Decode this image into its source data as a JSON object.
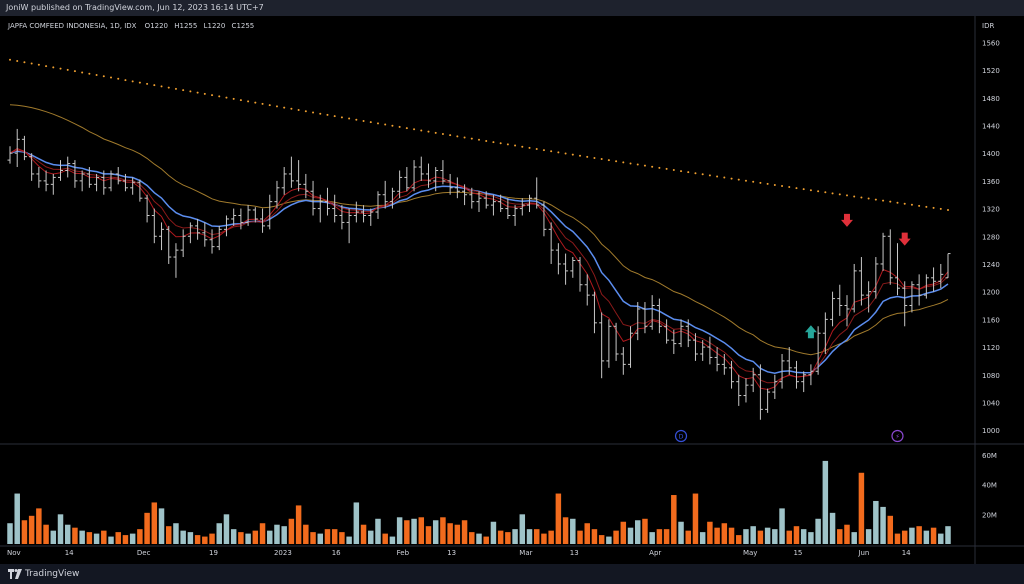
{
  "header": {
    "published": "JoniW published on TradingView.com, Jun 12, 2023 16:14 UTC+7"
  },
  "footer": {
    "brand": "TradingView"
  },
  "symbol": {
    "name": "JAPFA COMFEED INDONESIA",
    "interval": "1D",
    "exchange": "IDX",
    "o_label": "O",
    "o": "1220",
    "h_label": "H",
    "h": "1255",
    "l_label": "L",
    "l": "1220",
    "c_label": "C",
    "c": "1255"
  },
  "colors": {
    "bar": "#c8c8c8",
    "ema_blue": "#5b8def",
    "ema_red": "#b0191e",
    "ema_darkred": "#8b1a1a",
    "ma_tan": "#a07a2c",
    "ma_dots": "#f0a030",
    "vol_up": "#9fc3c8",
    "vol_down": "#f26b1d",
    "arrow_down": "#e0303a",
    "arrow_up": "#26a69a",
    "event_icon": "#3550d8",
    "event_icon_purple": "#8a48d0"
  },
  "chart_data": {
    "type": "ohlc",
    "currency_label": "IDR",
    "price_ticks": [
      1000,
      1040,
      1080,
      1120,
      1160,
      1200,
      1240,
      1280,
      1320,
      1360,
      1400,
      1440,
      1480,
      1520,
      1560
    ],
    "ylim": [
      980,
      1575
    ],
    "volume_ticks": [
      {
        "v": 20,
        "label": "20M"
      },
      {
        "v": 40,
        "label": "40M"
      },
      {
        "v": 60,
        "label": "60M"
      }
    ],
    "volume_ylim": [
      0,
      62
    ],
    "x_labels": [
      {
        "i": 0,
        "label": "Nov"
      },
      {
        "i": 8,
        "label": "14"
      },
      {
        "i": 18,
        "label": "Dec"
      },
      {
        "i": 28,
        "label": "19"
      },
      {
        "i": 37,
        "label": "2023"
      },
      {
        "i": 45,
        "label": "16"
      },
      {
        "i": 54,
        "label": "Feb"
      },
      {
        "i": 61,
        "label": "13"
      },
      {
        "i": 71,
        "label": "Mar"
      },
      {
        "i": 78,
        "label": "13"
      },
      {
        "i": 89,
        "label": "Apr"
      },
      {
        "i": 102,
        "label": "May"
      },
      {
        "i": 109,
        "label": "15"
      },
      {
        "i": 118,
        "label": "Jun"
      },
      {
        "i": 124,
        "label": "14"
      }
    ],
    "ohlc": [
      [
        1390,
        1410,
        1385,
        1400
      ],
      [
        1400,
        1435,
        1380,
        1420
      ],
      [
        1420,
        1425,
        1390,
        1395
      ],
      [
        1395,
        1400,
        1360,
        1370
      ],
      [
        1370,
        1380,
        1350,
        1360
      ],
      [
        1360,
        1375,
        1345,
        1355
      ],
      [
        1355,
        1370,
        1340,
        1365
      ],
      [
        1365,
        1390,
        1360,
        1375
      ],
      [
        1375,
        1395,
        1365,
        1385
      ],
      [
        1385,
        1390,
        1350,
        1360
      ],
      [
        1360,
        1375,
        1345,
        1370
      ],
      [
        1370,
        1380,
        1350,
        1355
      ],
      [
        1355,
        1370,
        1345,
        1365
      ],
      [
        1365,
        1375,
        1340,
        1350
      ],
      [
        1350,
        1375,
        1345,
        1370
      ],
      [
        1370,
        1380,
        1355,
        1360
      ],
      [
        1360,
        1370,
        1345,
        1350
      ],
      [
        1350,
        1365,
        1340,
        1358
      ],
      [
        1358,
        1362,
        1330,
        1335
      ],
      [
        1335,
        1340,
        1300,
        1310
      ],
      [
        1310,
        1320,
        1270,
        1280
      ],
      [
        1280,
        1300,
        1260,
        1290
      ],
      [
        1290,
        1295,
        1240,
        1250
      ],
      [
        1250,
        1270,
        1220,
        1260
      ],
      [
        1260,
        1290,
        1250,
        1280
      ],
      [
        1280,
        1300,
        1270,
        1295
      ],
      [
        1295,
        1305,
        1275,
        1285
      ],
      [
        1285,
        1300,
        1265,
        1275
      ],
      [
        1275,
        1290,
        1255,
        1265
      ],
      [
        1265,
        1295,
        1260,
        1290
      ],
      [
        1290,
        1310,
        1280,
        1305
      ],
      [
        1305,
        1320,
        1295,
        1310
      ],
      [
        1310,
        1320,
        1290,
        1300
      ],
      [
        1300,
        1325,
        1295,
        1318
      ],
      [
        1318,
        1322,
        1300,
        1305
      ],
      [
        1305,
        1320,
        1285,
        1295
      ],
      [
        1295,
        1340,
        1290,
        1330
      ],
      [
        1330,
        1360,
        1320,
        1350
      ],
      [
        1350,
        1380,
        1340,
        1370
      ],
      [
        1370,
        1395,
        1350,
        1360
      ],
      [
        1360,
        1390,
        1345,
        1355
      ],
      [
        1355,
        1370,
        1335,
        1345
      ],
      [
        1345,
        1360,
        1310,
        1320
      ],
      [
        1320,
        1340,
        1300,
        1330
      ],
      [
        1330,
        1350,
        1310,
        1320
      ],
      [
        1320,
        1340,
        1300,
        1310
      ],
      [
        1310,
        1325,
        1290,
        1300
      ],
      [
        1300,
        1320,
        1270,
        1310
      ],
      [
        1310,
        1330,
        1300,
        1315
      ],
      [
        1315,
        1325,
        1300,
        1310
      ],
      [
        1310,
        1320,
        1295,
        1315
      ],
      [
        1315,
        1345,
        1305,
        1340
      ],
      [
        1340,
        1360,
        1320,
        1330
      ],
      [
        1330,
        1350,
        1320,
        1345
      ],
      [
        1345,
        1375,
        1335,
        1365
      ],
      [
        1365,
        1380,
        1345,
        1350
      ],
      [
        1350,
        1390,
        1345,
        1380
      ],
      [
        1380,
        1395,
        1360,
        1370
      ],
      [
        1370,
        1385,
        1350,
        1360
      ],
      [
        1360,
        1380,
        1345,
        1375
      ],
      [
        1375,
        1390,
        1355,
        1360
      ],
      [
        1360,
        1370,
        1340,
        1350
      ],
      [
        1350,
        1365,
        1335,
        1345
      ],
      [
        1345,
        1355,
        1325,
        1340
      ],
      [
        1340,
        1350,
        1320,
        1330
      ],
      [
        1330,
        1345,
        1315,
        1335
      ],
      [
        1335,
        1345,
        1320,
        1325
      ],
      [
        1325,
        1340,
        1310,
        1330
      ],
      [
        1330,
        1340,
        1315,
        1320
      ],
      [
        1320,
        1335,
        1305,
        1310
      ],
      [
        1310,
        1325,
        1295,
        1320
      ],
      [
        1320,
        1335,
        1310,
        1325
      ],
      [
        1325,
        1340,
        1315,
        1335
      ],
      [
        1335,
        1365,
        1320,
        1325
      ],
      [
        1325,
        1330,
        1280,
        1290
      ],
      [
        1290,
        1300,
        1240,
        1260
      ],
      [
        1260,
        1270,
        1225,
        1240
      ],
      [
        1240,
        1255,
        1210,
        1230
      ],
      [
        1230,
        1250,
        1220,
        1245
      ],
      [
        1245,
        1250,
        1200,
        1210
      ],
      [
        1210,
        1225,
        1180,
        1195
      ],
      [
        1195,
        1200,
        1140,
        1155
      ],
      [
        1155,
        1170,
        1075,
        1100
      ],
      [
        1100,
        1160,
        1090,
        1150
      ],
      [
        1150,
        1155,
        1100,
        1110
      ],
      [
        1110,
        1120,
        1080,
        1095
      ],
      [
        1095,
        1150,
        1090,
        1140
      ],
      [
        1140,
        1185,
        1130,
        1175
      ],
      [
        1175,
        1185,
        1140,
        1150
      ],
      [
        1150,
        1195,
        1145,
        1180
      ],
      [
        1180,
        1190,
        1140,
        1150
      ],
      [
        1150,
        1160,
        1125,
        1130
      ],
      [
        1130,
        1145,
        1110,
        1125
      ],
      [
        1125,
        1160,
        1120,
        1150
      ],
      [
        1150,
        1160,
        1120,
        1130
      ],
      [
        1130,
        1140,
        1100,
        1110
      ],
      [
        1110,
        1130,
        1100,
        1120
      ],
      [
        1120,
        1135,
        1095,
        1105
      ],
      [
        1105,
        1120,
        1085,
        1095
      ],
      [
        1095,
        1110,
        1080,
        1090
      ],
      [
        1090,
        1100,
        1060,
        1070
      ],
      [
        1070,
        1080,
        1035,
        1050
      ],
      [
        1050,
        1075,
        1040,
        1065
      ],
      [
        1065,
        1090,
        1055,
        1080
      ],
      [
        1080,
        1095,
        1015,
        1030
      ],
      [
        1030,
        1060,
        1025,
        1055
      ],
      [
        1055,
        1080,
        1045,
        1070
      ],
      [
        1070,
        1110,
        1060,
        1100
      ],
      [
        1100,
        1120,
        1080,
        1090
      ],
      [
        1090,
        1100,
        1060,
        1070
      ],
      [
        1070,
        1085,
        1055,
        1080
      ],
      [
        1080,
        1095,
        1065,
        1085
      ],
      [
        1085,
        1150,
        1080,
        1140
      ],
      [
        1140,
        1170,
        1110,
        1160
      ],
      [
        1160,
        1200,
        1150,
        1190
      ],
      [
        1190,
        1210,
        1165,
        1180
      ],
      [
        1180,
        1195,
        1150,
        1175
      ],
      [
        1175,
        1240,
        1170,
        1230
      ],
      [
        1230,
        1250,
        1180,
        1195
      ],
      [
        1195,
        1215,
        1170,
        1200
      ],
      [
        1200,
        1250,
        1190,
        1240
      ],
      [
        1240,
        1285,
        1230,
        1280
      ],
      [
        1280,
        1290,
        1210,
        1220
      ],
      [
        1220,
        1270,
        1195,
        1205
      ],
      [
        1205,
        1215,
        1150,
        1180
      ],
      [
        1180,
        1215,
        1170,
        1210
      ],
      [
        1210,
        1225,
        1180,
        1195
      ],
      [
        1195,
        1225,
        1190,
        1220
      ],
      [
        1220,
        1235,
        1200,
        1215
      ],
      [
        1215,
        1240,
        1205,
        1225
      ],
      [
        1220,
        1255,
        1220,
        1255
      ]
    ],
    "volume": [
      14,
      34,
      16,
      19,
      24,
      13,
      9,
      20,
      13,
      11,
      9,
      8,
      7,
      9,
      5,
      8,
      6,
      7,
      10,
      21,
      28,
      24,
      12,
      14,
      9,
      8,
      6,
      5,
      7,
      14,
      20,
      10,
      8,
      7,
      9,
      14,
      9,
      13,
      12,
      17,
      26,
      13,
      8,
      7,
      10,
      10,
      8,
      5,
      28,
      13,
      9,
      17,
      7,
      5,
      18,
      16,
      17,
      18,
      12,
      16,
      18,
      14,
      13,
      16,
      8,
      7,
      5,
      15,
      9,
      8,
      10,
      20,
      10,
      10,
      7,
      9,
      34,
      18,
      17,
      9,
      14,
      10,
      6,
      5,
      9,
      15,
      11,
      16,
      17,
      8,
      10,
      10,
      33,
      15,
      9,
      34,
      8,
      15,
      11,
      14,
      11,
      6,
      10,
      12,
      9,
      11,
      10,
      24,
      9,
      12,
      10,
      8,
      17,
      56,
      21,
      10,
      13,
      8,
      48,
      10,
      29,
      25,
      19,
      7,
      9,
      11,
      12,
      9,
      11,
      7,
      12
    ],
    "series": [
      {
        "name": "",
        "kind": "ema_fast",
        "values": []
      },
      {
        "name": "",
        "kind": "ema_mid",
        "values": []
      }
    ],
    "markers": [
      {
        "kind": "up-arrow",
        "index": 111,
        "price": 1150
      },
      {
        "kind": "down-arrow",
        "index": 116,
        "price": 1295
      },
      {
        "kind": "down-arrow",
        "index": 124,
        "price": 1268
      }
    ],
    "events": [
      {
        "kind": "dividend",
        "label": "D",
        "index": 93
      },
      {
        "kind": "split",
        "label": "⚡",
        "index": 123
      }
    ]
  }
}
